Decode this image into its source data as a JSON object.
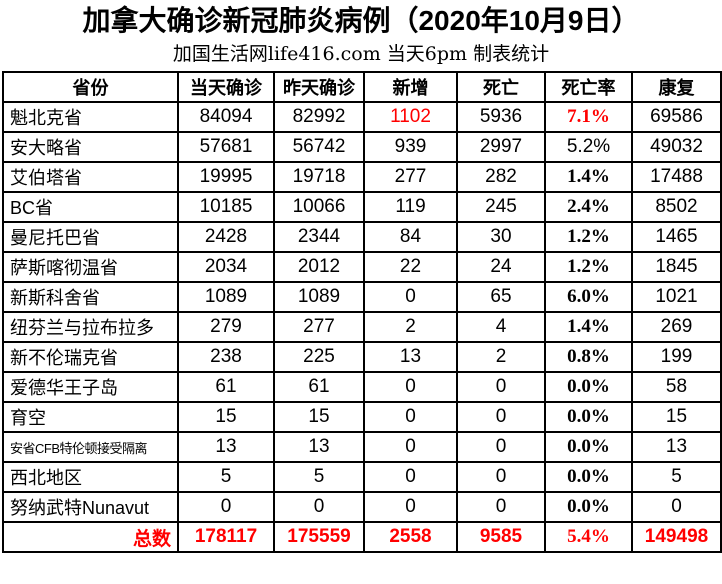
{
  "chart_data": {
    "type": "table",
    "title": "加拿大确诊新冠肺炎病例（2020年10月9日）",
    "subtitle": "加国生活网life416.com 当天6pm 制表统计",
    "columns": [
      "省份",
      "当天确诊",
      "昨天确诊",
      "新增",
      "死亡",
      "死亡率",
      "康复"
    ],
    "rows": [
      [
        "魁北克省",
        "84094",
        "82992",
        "1102",
        "5936",
        "7.1%",
        "69586"
      ],
      [
        "安大略省",
        "57681",
        "56742",
        "939",
        "2997",
        "5.2%",
        "49032"
      ],
      [
        "艾伯塔省",
        "19995",
        "19718",
        "277",
        "282",
        "1.4%",
        "17488"
      ],
      [
        "BC省",
        "10185",
        "10066",
        "119",
        "245",
        "2.4%",
        "8502"
      ],
      [
        "曼尼托巴省",
        "2428",
        "2344",
        "84",
        "30",
        "1.2%",
        "1465"
      ],
      [
        "萨斯喀彻温省",
        "2034",
        "2012",
        "22",
        "24",
        "1.2%",
        "1845"
      ],
      [
        "新斯科舍省",
        "1089",
        "1089",
        "0",
        "65",
        "6.0%",
        "1021"
      ],
      [
        "纽芬兰与拉布拉多",
        "279",
        "277",
        "2",
        "4",
        "1.4%",
        "269"
      ],
      [
        "新不伦瑞克省",
        "238",
        "225",
        "13",
        "2",
        "0.8%",
        "199"
      ],
      [
        "爱德华王子岛",
        "61",
        "61",
        "0",
        "0",
        "0.0%",
        "58"
      ],
      [
        "育空",
        "15",
        "15",
        "0",
        "0",
        "0.0%",
        "15"
      ],
      [
        "安省CFB特伦顿接受隔离",
        "13",
        "13",
        "0",
        "0",
        "0.0%",
        "13"
      ],
      [
        "西北地区",
        "5",
        "5",
        "0",
        "0",
        "0.0%",
        "5"
      ],
      [
        "努纳武特Nunavut",
        "0",
        "0",
        "0",
        "0",
        "0.0%",
        "0"
      ]
    ],
    "total_row": [
      "总数",
      "178117",
      "175559",
      "2558",
      "9585",
      "5.4%",
      "149498"
    ]
  },
  "styles": {
    "highlight_color": "#ff0000",
    "text_color": "#000000",
    "border_color": "#000000",
    "background_color": "#ffffff",
    "red_cells": [
      [
        0,
        3
      ],
      [
        0,
        5
      ]
    ],
    "regular_weight_rate_rows": [
      1
    ],
    "small_label_rows": [
      11
    ]
  }
}
